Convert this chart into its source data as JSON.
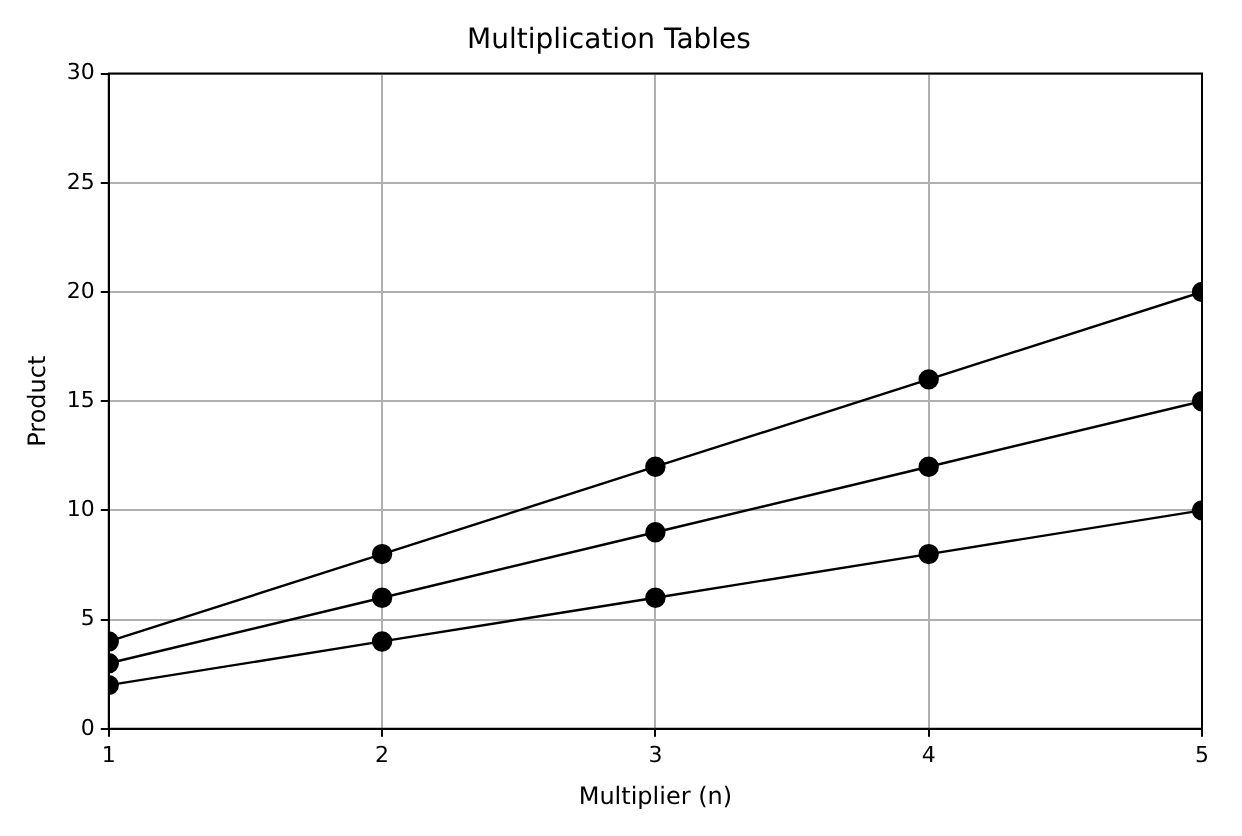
{
  "chart_data": {
    "type": "line",
    "title": "Multiplication Tables",
    "xlabel": "Multiplier (n)",
    "ylabel": "Product",
    "x": [
      1,
      2,
      3,
      4,
      5
    ],
    "series": [
      {
        "color": "#000000",
        "values": [
          2,
          4,
          6,
          8,
          10
        ]
      },
      {
        "color": "#000000",
        "values": [
          3,
          6,
          9,
          12,
          15
        ]
      },
      {
        "color": "#000000",
        "values": [
          4,
          8,
          12,
          16,
          20
        ]
      }
    ],
    "xlim": [
      1,
      5
    ],
    "xticks": [
      1,
      2,
      3,
      4,
      5
    ],
    "ylim": [
      0,
      30
    ],
    "yticks": [
      0,
      5,
      10,
      15,
      20,
      25,
      30
    ],
    "grid": true,
    "legend": false,
    "marker": "circle",
    "line_style": "solid"
  }
}
